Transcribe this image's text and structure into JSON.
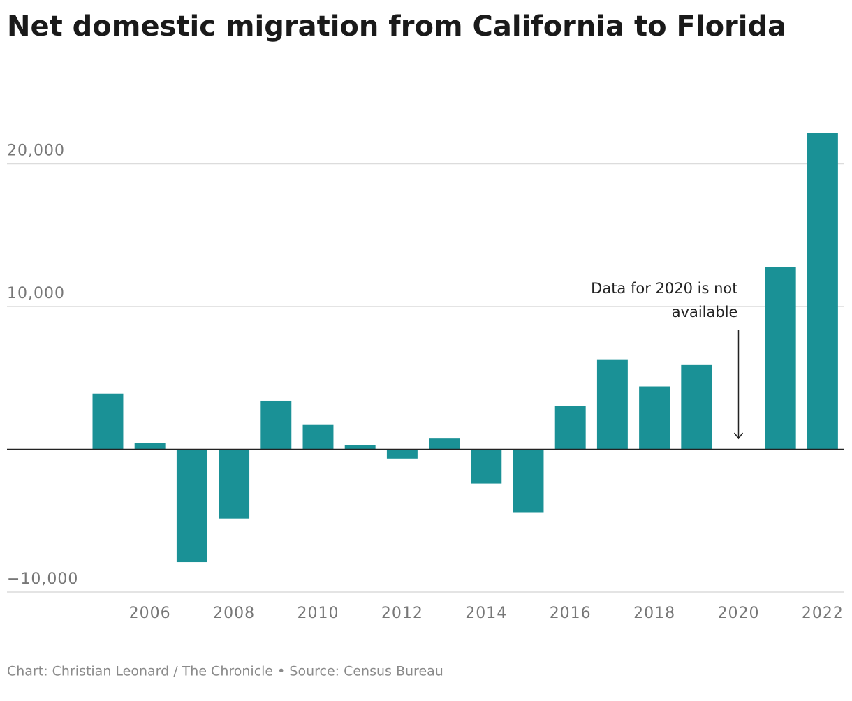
{
  "chart_data": {
    "type": "bar",
    "title": "Net domestic migration from California to Florida",
    "source": "Chart: Christian Leonard / The Chronicle • Source: Census Bureau",
    "x": [
      2005,
      2006,
      2007,
      2008,
      2009,
      2010,
      2011,
      2012,
      2013,
      2014,
      2015,
      2016,
      2017,
      2018,
      2019,
      2020,
      2021,
      2022
    ],
    "values": [
      3900,
      450,
      -7900,
      -4850,
      3400,
      1750,
      300,
      -650,
      750,
      -2400,
      -4450,
      3050,
      6300,
      4400,
      5900,
      null,
      12750,
      22150
    ],
    "color": "#1a9196",
    "xlim": [
      2002.6,
      2022.5
    ],
    "xticks": [
      2006,
      2008,
      2010,
      2012,
      2014,
      2016,
      2018,
      2020,
      2022
    ],
    "ylim": [
      -10000,
      24000
    ],
    "yticks": [
      {
        "value": -10000,
        "label": "−10,000"
      },
      {
        "value": 10000,
        "label": "10,000"
      },
      {
        "value": 20000,
        "label": "20,000"
      }
    ],
    "grid": true,
    "annotation": {
      "lines": [
        "Data for 2020 is not",
        "available"
      ],
      "x": 2020
    }
  }
}
